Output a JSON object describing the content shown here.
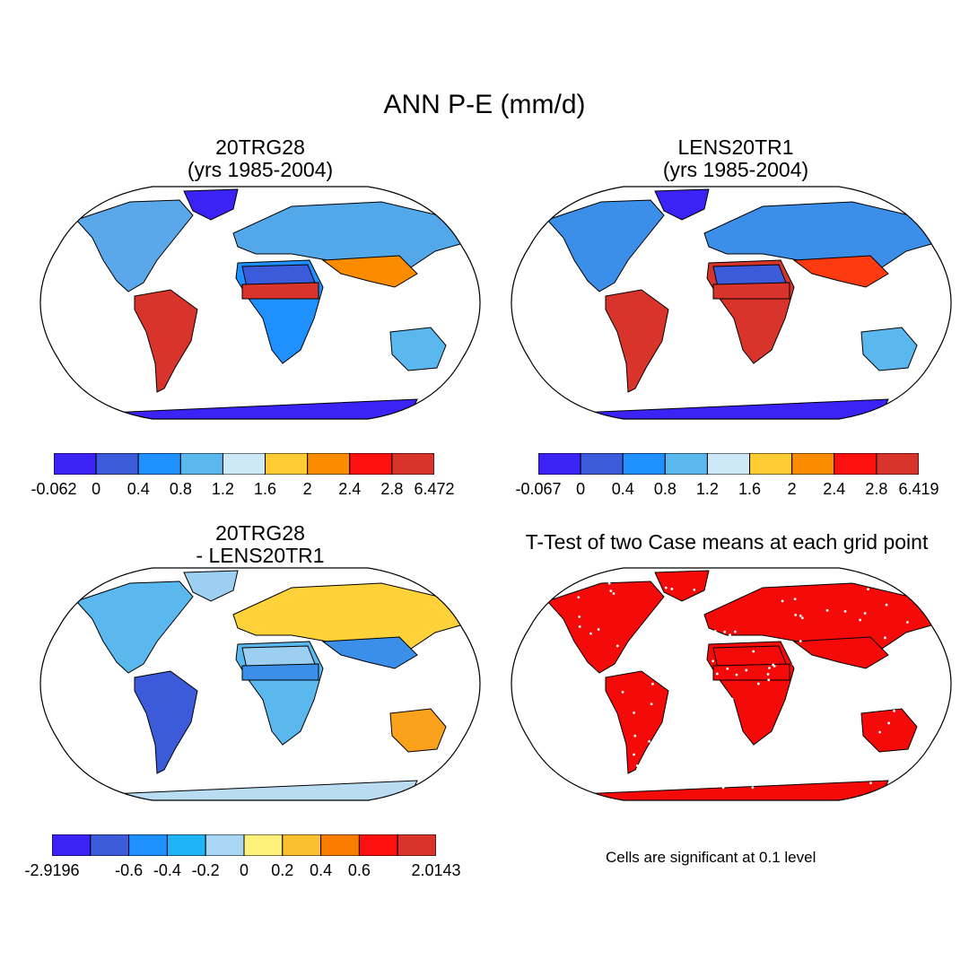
{
  "figure": {
    "title": "ANN P-E (mm/d)"
  },
  "panels": [
    {
      "id": "p1",
      "title_line1": "20TRG28",
      "title_line2": "(yrs 1985-2004)",
      "kind": "field",
      "ocean_color": "#ffffff",
      "regions": {
        "north_america": "#5aa8ea",
        "greenland": "#3b23f5",
        "south_america": "#d9342b",
        "africa": "#1e90ff",
        "sahara": "#3b5bdb",
        "eurasia": "#52a8e8",
        "south_asia": "#fb8c00",
        "australia": "#5ab8ee",
        "antarctica": "#3b23f5",
        "equatorial_belt": "#d9342b"
      },
      "colorbar": {
        "colors": [
          "#3b23f5",
          "#3b5bdb",
          "#1e90ff",
          "#5ab8ee",
          "#cde9f7",
          "#ffcc33",
          "#fb8c00",
          "#fd1010",
          "#d9342b"
        ],
        "ticks": [
          "-0.062",
          "0",
          "0.4",
          "0.8",
          "1.2",
          "1.6",
          "2",
          "2.4",
          "2.8",
          "6.472"
        ]
      }
    },
    {
      "id": "p2",
      "title_line1": "LENS20TR1",
      "title_line2": "(yrs 1985-2004)",
      "kind": "field",
      "ocean_color": "#ffffff",
      "regions": {
        "north_america": "#3b8fe8",
        "greenland": "#3b23f5",
        "south_america": "#d9342b",
        "africa": "#d9342b",
        "sahara": "#3b5bdb",
        "eurasia": "#3b8fe8",
        "south_asia": "#fd3a10",
        "australia": "#5ab8ee",
        "antarctica": "#3b23f5",
        "equatorial_belt": "#d9342b"
      },
      "colorbar": {
        "colors": [
          "#3b23f5",
          "#3b5bdb",
          "#1e90ff",
          "#5ab8ee",
          "#cde9f7",
          "#ffcc33",
          "#fb8c00",
          "#fd1010",
          "#d9342b"
        ],
        "ticks": [
          "-0.067",
          "0",
          "0.4",
          "0.8",
          "1.2",
          "1.6",
          "2",
          "2.4",
          "2.8",
          "6.419"
        ]
      }
    },
    {
      "id": "p3",
      "title_line1": "20TRG28",
      "title_line2": "- LENS20TR1",
      "kind": "field",
      "ocean_color": "#ffffff",
      "regions": {
        "north_america": "#5ab8ee",
        "greenland": "#9ccff2",
        "south_america": "#3b5bdb",
        "africa": "#5ab8ee",
        "sahara": "#9ccff2",
        "eurasia": "#ffd23a",
        "south_asia": "#3b8fe8",
        "australia": "#fba21c",
        "antarctica": "#b9dcf2",
        "equatorial_belt": "#3b8fe8"
      },
      "colorbar": {
        "colors": [
          "#3b23f5",
          "#3b5bdb",
          "#1e90ff",
          "#1fb4f5",
          "#a9d6f2",
          "#fff07a",
          "#fbc02d",
          "#fb7d00",
          "#fd1010",
          "#d9342b"
        ],
        "ticks": [
          "-2.9196",
          "",
          "-0.6",
          "-0.4",
          "-0.2",
          "0",
          "0.2",
          "0.4",
          "0.6",
          "",
          "2.0143"
        ]
      }
    },
    {
      "id": "p4",
      "title_line1": "T-Test of two Case means at each grid point",
      "kind": "significance",
      "ocean_color": "#ffffff",
      "land_color": "#f50a0a",
      "note": "Cells are significant at 0.1 level"
    }
  ]
}
